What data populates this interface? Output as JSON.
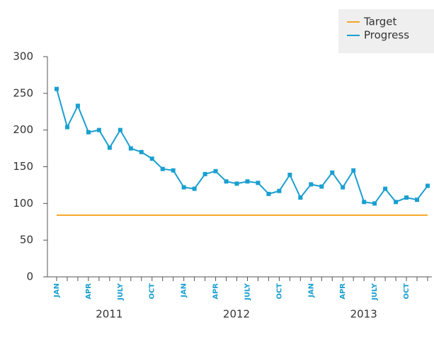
{
  "chart_data": {
    "type": "line",
    "categories": [
      "JAN",
      null,
      null,
      "APR",
      null,
      null,
      "JULY",
      null,
      null,
      "OCT",
      null,
      null,
      "JAN",
      null,
      null,
      "APR",
      null,
      null,
      "JULY",
      null,
      null,
      "OCT",
      null,
      null,
      "JAN",
      null,
      null,
      "APR",
      null,
      null,
      "JULY",
      null,
      null,
      "OCT",
      null,
      null
    ],
    "year_labels": [
      "2011",
      "2012",
      "2013"
    ],
    "series": [
      {
        "name": "Target",
        "color": "#f5a623",
        "values": [
          84,
          84,
          84,
          84,
          84,
          84,
          84,
          84,
          84,
          84,
          84,
          84,
          84,
          84,
          84,
          84,
          84,
          84,
          84,
          84,
          84,
          84,
          84,
          84,
          84,
          84,
          84,
          84,
          84,
          84,
          84,
          84,
          84,
          84,
          84,
          84
        ]
      },
      {
        "name": "Progress",
        "color": "#1a9fd0",
        "markers": true,
        "values": [
          256,
          204,
          233,
          197,
          200,
          176,
          200,
          175,
          170,
          161,
          147,
          145,
          122,
          120,
          140,
          144,
          130,
          127,
          130,
          128,
          113,
          117,
          139,
          108,
          126,
          123,
          142,
          122,
          145,
          102,
          100,
          120,
          102,
          108,
          105,
          124
        ]
      }
    ],
    "ylim": [
      0,
      300
    ],
    "yticks": [
      0,
      50,
      100,
      150,
      200,
      250,
      300
    ],
    "grid": false,
    "legend": "top-right"
  }
}
